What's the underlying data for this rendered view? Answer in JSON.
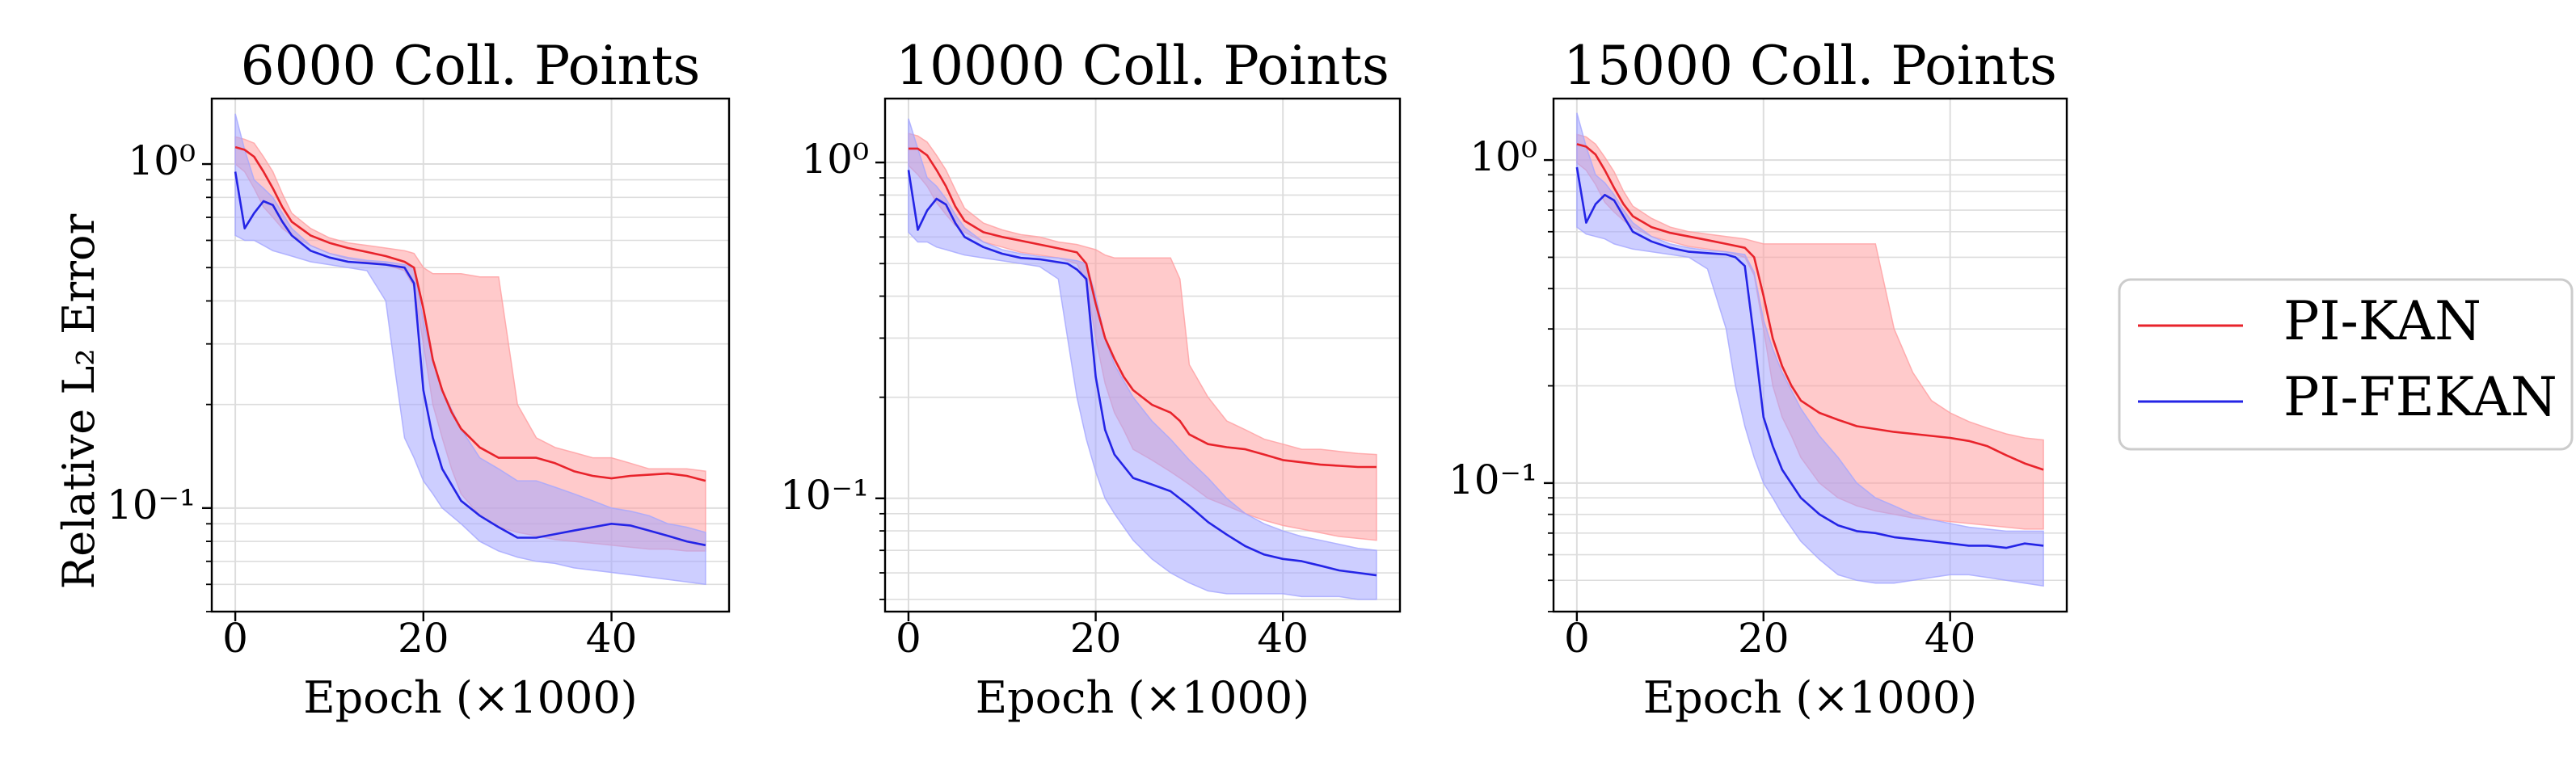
{
  "figure": {
    "shared_ylabel": "Relative L₂ Error",
    "legend": {
      "entries": [
        "PI-KAN",
        "PI-FEKAN"
      ],
      "placement": "right"
    },
    "colors": {
      "PI-KAN": "#e8232b",
      "PI-FEKAN": "#2424e6",
      "PI-KAN_band": "#ff9ea0",
      "PI-FEKAN_band": "#a4a6ff",
      "grid": "#dddddd",
      "axes": "#000000"
    }
  },
  "chart_data": [
    {
      "type": "line",
      "title": "6000 Coll. Points",
      "xlabel": "Epoch (×1000)",
      "ylabel": "Relative L₂ Error",
      "xlim": [
        -2.5,
        52.5
      ],
      "ylim": [
        0.05,
        1.55
      ],
      "yscale": "log",
      "grid": true,
      "xticks": [
        0,
        20,
        40
      ],
      "xtick_labels": [
        "0",
        "20",
        "40"
      ],
      "yticks": [
        1.0,
        0.1
      ],
      "ytick_labels": [
        "10⁰",
        "10⁻¹"
      ],
      "series": [
        {
          "name": "PI-KAN",
          "x": [
            0,
            1,
            2,
            3,
            4,
            5,
            6,
            8,
            10,
            12,
            14,
            16,
            18,
            19,
            20,
            21,
            22,
            23,
            24,
            26,
            28,
            30,
            32,
            34,
            36,
            38,
            40,
            42,
            44,
            46,
            48,
            50
          ],
          "y": [
            1.12,
            1.1,
            1.05,
            0.95,
            0.85,
            0.75,
            0.68,
            0.62,
            0.59,
            0.57,
            0.555,
            0.54,
            0.52,
            0.5,
            0.38,
            0.27,
            0.22,
            0.19,
            0.17,
            0.15,
            0.14,
            0.14,
            0.14,
            0.135,
            0.128,
            0.124,
            0.122,
            0.124,
            0.125,
            0.126,
            0.124,
            0.12
          ],
          "band_upper": [
            1.2,
            1.18,
            1.15,
            1.05,
            0.95,
            0.82,
            0.72,
            0.65,
            0.61,
            0.59,
            0.58,
            0.57,
            0.56,
            0.55,
            0.5,
            0.48,
            0.48,
            0.48,
            0.48,
            0.47,
            0.47,
            0.2,
            0.16,
            0.15,
            0.145,
            0.14,
            0.14,
            0.135,
            0.13,
            0.13,
            0.13,
            0.128
          ],
          "band_lower": [
            1.0,
            0.95,
            0.85,
            0.75,
            0.7,
            0.65,
            0.62,
            0.58,
            0.55,
            0.53,
            0.52,
            0.51,
            0.49,
            0.44,
            0.3,
            0.2,
            0.16,
            0.13,
            0.11,
            0.095,
            0.088,
            0.085,
            0.083,
            0.081,
            0.08,
            0.079,
            0.078,
            0.077,
            0.076,
            0.076,
            0.075,
            0.075
          ]
        },
        {
          "name": "PI-FEKAN",
          "x": [
            0,
            1,
            2,
            3,
            4,
            5,
            6,
            8,
            10,
            12,
            14,
            16,
            17,
            18,
            19,
            20,
            21,
            22,
            24,
            26,
            28,
            30,
            32,
            34,
            36,
            38,
            40,
            42,
            44,
            46,
            48,
            50
          ],
          "y": [
            0.95,
            0.65,
            0.72,
            0.78,
            0.76,
            0.68,
            0.62,
            0.56,
            0.535,
            0.52,
            0.515,
            0.51,
            0.505,
            0.5,
            0.45,
            0.22,
            0.16,
            0.13,
            0.105,
            0.095,
            0.088,
            0.082,
            0.082,
            0.084,
            0.086,
            0.088,
            0.09,
            0.089,
            0.086,
            0.083,
            0.08,
            0.078
          ],
          "band_upper": [
            1.4,
            1.1,
            0.9,
            0.85,
            0.8,
            0.72,
            0.65,
            0.58,
            0.55,
            0.535,
            0.525,
            0.52,
            0.515,
            0.51,
            0.5,
            0.35,
            0.27,
            0.22,
            0.17,
            0.14,
            0.13,
            0.12,
            0.12,
            0.115,
            0.11,
            0.105,
            0.1,
            0.098,
            0.095,
            0.09,
            0.088,
            0.085
          ],
          "band_lower": [
            0.62,
            0.6,
            0.6,
            0.58,
            0.56,
            0.55,
            0.54,
            0.52,
            0.51,
            0.5,
            0.49,
            0.4,
            0.25,
            0.16,
            0.14,
            0.12,
            0.11,
            0.1,
            0.09,
            0.08,
            0.075,
            0.072,
            0.07,
            0.069,
            0.067,
            0.066,
            0.065,
            0.064,
            0.063,
            0.062,
            0.061,
            0.06
          ]
        }
      ]
    },
    {
      "type": "line",
      "title": "10000 Coll. Points",
      "xlabel": "Epoch (×1000)",
      "ylabel": "",
      "xlim": [
        -2.5,
        52.5
      ],
      "ylim": [
        0.046,
        1.55
      ],
      "yscale": "log",
      "grid": true,
      "xticks": [
        0,
        20,
        40
      ],
      "xtick_labels": [
        "0",
        "20",
        "40"
      ],
      "yticks": [
        1.0,
        0.1
      ],
      "ytick_labels": [
        "10⁰",
        "10⁻¹"
      ],
      "series": [
        {
          "name": "PI-KAN",
          "x": [
            0,
            1,
            2,
            3,
            4,
            5,
            6,
            8,
            10,
            12,
            14,
            16,
            18,
            19,
            20,
            21,
            22,
            23,
            24,
            26,
            28,
            29,
            30,
            32,
            34,
            36,
            38,
            40,
            42,
            44,
            46,
            48,
            50
          ],
          "y": [
            1.1,
            1.1,
            1.05,
            0.95,
            0.85,
            0.74,
            0.67,
            0.62,
            0.6,
            0.585,
            0.57,
            0.555,
            0.54,
            0.5,
            0.38,
            0.3,
            0.26,
            0.23,
            0.21,
            0.19,
            0.18,
            0.17,
            0.155,
            0.145,
            0.142,
            0.14,
            0.135,
            0.13,
            0.128,
            0.126,
            0.125,
            0.124,
            0.124
          ],
          "band_upper": [
            1.22,
            1.2,
            1.15,
            1.05,
            0.95,
            0.83,
            0.73,
            0.66,
            0.63,
            0.61,
            0.6,
            0.58,
            0.57,
            0.56,
            0.55,
            0.53,
            0.52,
            0.52,
            0.52,
            0.52,
            0.52,
            0.45,
            0.25,
            0.2,
            0.17,
            0.16,
            0.15,
            0.145,
            0.14,
            0.14,
            0.138,
            0.136,
            0.135
          ],
          "band_lower": [
            0.98,
            0.92,
            0.85,
            0.76,
            0.7,
            0.65,
            0.62,
            0.58,
            0.56,
            0.54,
            0.53,
            0.52,
            0.5,
            0.44,
            0.3,
            0.22,
            0.18,
            0.16,
            0.14,
            0.13,
            0.12,
            0.115,
            0.11,
            0.1,
            0.095,
            0.09,
            0.086,
            0.083,
            0.081,
            0.079,
            0.077,
            0.076,
            0.075
          ]
        },
        {
          "name": "PI-FEKAN",
          "x": [
            0,
            1,
            2,
            3,
            4,
            5,
            6,
            8,
            10,
            12,
            14,
            16,
            17,
            18,
            19,
            20,
            21,
            22,
            24,
            26,
            28,
            30,
            32,
            34,
            36,
            38,
            40,
            42,
            44,
            46,
            48,
            50
          ],
          "y": [
            0.95,
            0.63,
            0.72,
            0.78,
            0.75,
            0.66,
            0.6,
            0.56,
            0.535,
            0.52,
            0.515,
            0.505,
            0.5,
            0.48,
            0.45,
            0.23,
            0.16,
            0.135,
            0.115,
            0.11,
            0.105,
            0.095,
            0.085,
            0.078,
            0.072,
            0.068,
            0.066,
            0.065,
            0.063,
            0.061,
            0.06,
            0.059
          ],
          "band_upper": [
            1.35,
            1.1,
            0.9,
            0.85,
            0.78,
            0.7,
            0.64,
            0.58,
            0.55,
            0.535,
            0.525,
            0.52,
            0.515,
            0.51,
            0.5,
            0.4,
            0.3,
            0.25,
            0.2,
            0.17,
            0.15,
            0.13,
            0.115,
            0.1,
            0.09,
            0.084,
            0.08,
            0.077,
            0.075,
            0.073,
            0.071,
            0.07
          ],
          "band_lower": [
            0.62,
            0.58,
            0.58,
            0.56,
            0.55,
            0.54,
            0.53,
            0.52,
            0.51,
            0.5,
            0.49,
            0.45,
            0.3,
            0.2,
            0.15,
            0.12,
            0.1,
            0.09,
            0.075,
            0.066,
            0.06,
            0.056,
            0.053,
            0.052,
            0.052,
            0.052,
            0.052,
            0.051,
            0.051,
            0.051,
            0.05,
            0.05
          ]
        }
      ]
    },
    {
      "type": "line",
      "title": "15000 Coll. Points",
      "xlabel": "Epoch (×1000)",
      "ylabel": "",
      "xlim": [
        -2.5,
        52.5
      ],
      "ylim": [
        0.04,
        1.55
      ],
      "yscale": "log",
      "grid": true,
      "xticks": [
        0,
        20,
        40
      ],
      "xtick_labels": [
        "0",
        "20",
        "40"
      ],
      "yticks": [
        1.0,
        0.1
      ],
      "ytick_labels": [
        "10⁰",
        "10⁻¹"
      ],
      "series": [
        {
          "name": "PI-KAN",
          "x": [
            0,
            1,
            2,
            3,
            4,
            5,
            6,
            8,
            10,
            12,
            14,
            16,
            18,
            19,
            20,
            21,
            22,
            23,
            24,
            26,
            28,
            30,
            32,
            34,
            36,
            38,
            40,
            42,
            44,
            46,
            48,
            50
          ],
          "y": [
            1.12,
            1.1,
            1.04,
            0.93,
            0.82,
            0.73,
            0.67,
            0.62,
            0.595,
            0.58,
            0.565,
            0.55,
            0.535,
            0.5,
            0.38,
            0.28,
            0.23,
            0.2,
            0.18,
            0.165,
            0.157,
            0.15,
            0.147,
            0.144,
            0.142,
            0.14,
            0.138,
            0.135,
            0.13,
            0.122,
            0.115,
            0.11
          ],
          "band_upper": [
            1.2,
            1.18,
            1.12,
            1.02,
            0.92,
            0.8,
            0.72,
            0.66,
            0.62,
            0.6,
            0.59,
            0.58,
            0.57,
            0.56,
            0.55,
            0.55,
            0.55,
            0.55,
            0.55,
            0.55,
            0.55,
            0.55,
            0.55,
            0.3,
            0.22,
            0.18,
            0.165,
            0.155,
            0.148,
            0.142,
            0.138,
            0.136
          ],
          "band_lower": [
            0.98,
            0.93,
            0.84,
            0.74,
            0.69,
            0.65,
            0.62,
            0.58,
            0.56,
            0.54,
            0.53,
            0.52,
            0.5,
            0.44,
            0.3,
            0.2,
            0.16,
            0.14,
            0.12,
            0.1,
            0.09,
            0.085,
            0.082,
            0.08,
            0.078,
            0.077,
            0.076,
            0.075,
            0.074,
            0.073,
            0.072,
            0.072
          ]
        },
        {
          "name": "PI-FEKAN",
          "x": [
            0,
            1,
            2,
            3,
            4,
            5,
            6,
            8,
            10,
            12,
            14,
            16,
            17,
            18,
            19,
            20,
            21,
            22,
            24,
            26,
            28,
            30,
            32,
            34,
            36,
            38,
            40,
            42,
            44,
            46,
            48,
            50
          ],
          "y": [
            0.95,
            0.64,
            0.73,
            0.78,
            0.75,
            0.67,
            0.6,
            0.56,
            0.535,
            0.52,
            0.515,
            0.51,
            0.5,
            0.47,
            0.28,
            0.16,
            0.13,
            0.11,
            0.09,
            0.08,
            0.074,
            0.071,
            0.07,
            0.068,
            0.067,
            0.066,
            0.065,
            0.064,
            0.064,
            0.063,
            0.065,
            0.064
          ],
          "band_upper": [
            1.4,
            1.1,
            0.9,
            0.85,
            0.78,
            0.7,
            0.64,
            0.58,
            0.55,
            0.535,
            0.525,
            0.52,
            0.515,
            0.51,
            0.45,
            0.32,
            0.26,
            0.22,
            0.17,
            0.14,
            0.12,
            0.1,
            0.09,
            0.085,
            0.08,
            0.077,
            0.075,
            0.073,
            0.072,
            0.071,
            0.071,
            0.071
          ],
          "band_lower": [
            0.62,
            0.59,
            0.58,
            0.57,
            0.55,
            0.54,
            0.53,
            0.52,
            0.51,
            0.5,
            0.46,
            0.3,
            0.2,
            0.15,
            0.12,
            0.1,
            0.09,
            0.08,
            0.066,
            0.058,
            0.052,
            0.05,
            0.049,
            0.049,
            0.05,
            0.051,
            0.052,
            0.052,
            0.051,
            0.05,
            0.049,
            0.048
          ]
        }
      ]
    }
  ]
}
